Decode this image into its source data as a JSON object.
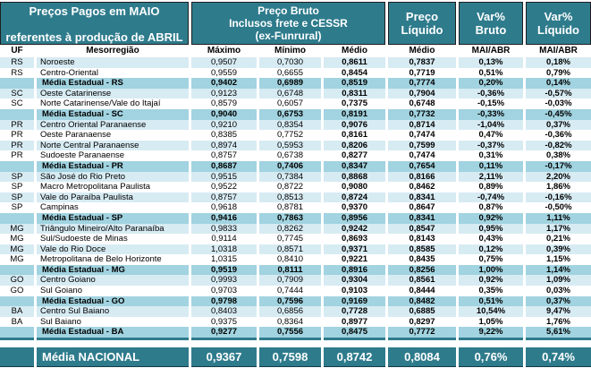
{
  "colors": {
    "teal": "#2E7B8C",
    "light": "#D7EBF3",
    "media": "#A1D3E0"
  },
  "header": {
    "title_line1": "Preços Pagos em MAIO",
    "title_line2": "referentes à produção de ABRIL",
    "bruto_line1": "Preço Bruto",
    "bruto_line2": "Inclusos frete e CESSR",
    "bruto_line3": "(ex-Funrural)",
    "liquido_line1": "Preço",
    "liquido_line2": "Líquido",
    "var_bruto_line1": "Var%",
    "var_bruto_line2": "Bruto",
    "var_liquido_line1": "Var%",
    "var_liquido_line2": "Líquido"
  },
  "chart_data": {
    "type": "table",
    "columns": [
      "UF",
      "Mesorregião",
      "Máximo",
      "Mínimo",
      "Médio",
      "Médio",
      "MAI/ABR",
      "MAI/ABR"
    ],
    "rows": [
      {
        "uf": "RS",
        "region": "Noroeste",
        "max": "0,9507",
        "min": "0,7030",
        "med": "0,8611",
        "liq": "0,7837",
        "var_bruto": "0,13%",
        "var_liq": "0,18%",
        "kind": "light"
      },
      {
        "uf": "RS",
        "region": "Centro-Oriental",
        "max": "0,9559",
        "min": "0,6655",
        "med": "0,8454",
        "liq": "0,7719",
        "var_bruto": "0,51%",
        "var_liq": "0,79%",
        "kind": "white"
      },
      {
        "uf": "",
        "region": "Média Estadual - RS",
        "max": "0,9402",
        "min": "0,6989",
        "med": "0,8519",
        "liq": "0,7774",
        "var_bruto": "0,20%",
        "var_liq": "0,14%",
        "kind": "media"
      },
      {
        "uf": "SC",
        "region": "Oeste Catarinense",
        "max": "0,9123",
        "min": "0,6748",
        "med": "0,8311",
        "liq": "0,7904",
        "var_bruto": "-0,36%",
        "var_liq": "-0,57%",
        "kind": "light"
      },
      {
        "uf": "SC",
        "region": "Norte Catarinense/Vale do Itajaí",
        "max": "0,8579",
        "min": "0,6057",
        "med": "0,7375",
        "liq": "0,6748",
        "var_bruto": "-0,15%",
        "var_liq": "-0,03%",
        "kind": "white"
      },
      {
        "uf": "",
        "region": "Média Estadual - SC",
        "max": "0,9040",
        "min": "0,6753",
        "med": "0,8191",
        "liq": "0,7732",
        "var_bruto": "-0,33%",
        "var_liq": "-0,45%",
        "kind": "media"
      },
      {
        "uf": "PR",
        "region": "Centro Oriental Paranaense",
        "max": "0,9210",
        "min": "0,8354",
        "med": "0,9076",
        "liq": "0,8714",
        "var_bruto": "-1,04%",
        "var_liq": "0,37%",
        "kind": "light"
      },
      {
        "uf": "PR",
        "region": "Oeste Paranaense",
        "max": "0,8385",
        "min": "0,7752",
        "med": "0,8161",
        "liq": "0,7474",
        "var_bruto": "0,47%",
        "var_liq": "-0,36%",
        "kind": "white"
      },
      {
        "uf": "PR",
        "region": "Norte Central Paranaense",
        "max": "0,8974",
        "min": "0,5953",
        "med": "0,8206",
        "liq": "0,7599",
        "var_bruto": "-0,37%",
        "var_liq": "-0,82%",
        "kind": "light"
      },
      {
        "uf": "PR",
        "region": "Sudoeste Paranaense",
        "max": "0,8757",
        "min": "0,6738",
        "med": "0,8277",
        "liq": "0,7474",
        "var_bruto": "0,31%",
        "var_liq": "0,38%",
        "kind": "white"
      },
      {
        "uf": "",
        "region": "Média Estadual - PR",
        "max": "0,8687",
        "min": "0,7406",
        "med": "0,8347",
        "liq": "0,7654",
        "var_bruto": "0,11%",
        "var_liq": "-0,17%",
        "kind": "media"
      },
      {
        "uf": "SP",
        "region": "São José do Rio Preto",
        "max": "0,9515",
        "min": "0,7384",
        "med": "0,8868",
        "liq": "0,8166",
        "var_bruto": "2,11%",
        "var_liq": "2,20%",
        "kind": "light"
      },
      {
        "uf": "SP",
        "region": "Macro Metropolitana Paulista",
        "max": "0,9522",
        "min": "0,8722",
        "med": "0,9080",
        "liq": "0,8462",
        "var_bruto": "0,89%",
        "var_liq": "1,86%",
        "kind": "white"
      },
      {
        "uf": "SP",
        "region": "Vale do Paraíba Paulista",
        "max": "0,8757",
        "min": "0,8513",
        "med": "0,8724",
        "liq": "0,8341",
        "var_bruto": "-0,74%",
        "var_liq": "-0,16%",
        "kind": "light"
      },
      {
        "uf": "SP",
        "region": "Campinas",
        "max": "0,9618",
        "min": "0,8781",
        "med": "0,9370",
        "liq": "0,8647",
        "var_bruto": "0,87%",
        "var_liq": "-0,50%",
        "kind": "white"
      },
      {
        "uf": "",
        "region": "Média Estadual - SP",
        "max": "0,9416",
        "min": "0,7863",
        "med": "0,8956",
        "liq": "0,8341",
        "var_bruto": "0,92%",
        "var_liq": "1,11%",
        "kind": "media"
      },
      {
        "uf": "MG",
        "region": "Triângulo Mineiro/Alto Paranaíba",
        "max": "0,9833",
        "min": "0,8262",
        "med": "0,9242",
        "liq": "0,8547",
        "var_bruto": "0,95%",
        "var_liq": "1,17%",
        "kind": "light"
      },
      {
        "uf": "MG",
        "region": "Sul/Sudoeste de Minas",
        "max": "0,9114",
        "min": "0,7745",
        "med": "0,8693",
        "liq": "0,8143",
        "var_bruto": "0,43%",
        "var_liq": "0,21%",
        "kind": "white"
      },
      {
        "uf": "MG",
        "region": "Vale do Rio Doce",
        "max": "1,0318",
        "min": "0,8571",
        "med": "0,9371",
        "liq": "0,8585",
        "var_bruto": "0,12%",
        "var_liq": "0,39%",
        "kind": "light"
      },
      {
        "uf": "MG",
        "region": "Metropolitana de Belo Horizonte",
        "max": "1,0315",
        "min": "0,8410",
        "med": "0,9221",
        "liq": "0,8435",
        "var_bruto": "0,75%",
        "var_liq": "1,15%",
        "kind": "white"
      },
      {
        "uf": "",
        "region": "Média Estadual - MG",
        "max": "0,9519",
        "min": "0,8111",
        "med": "0,8916",
        "liq": "0,8256",
        "var_bruto": "1,00%",
        "var_liq": "1,14%",
        "kind": "media"
      },
      {
        "uf": "GO",
        "region": "Centro Goiano",
        "max": "0,9993",
        "min": "0,7909",
        "med": "0,9304",
        "liq": "0,8561",
        "var_bruto": "0,92%",
        "var_liq": "1,09%",
        "kind": "light"
      },
      {
        "uf": "GO",
        "region": "Sul Goiano",
        "max": "0,9703",
        "min": "0,7444",
        "med": "0,9103",
        "liq": "0,8444",
        "var_bruto": "0,35%",
        "var_liq": "0,03%",
        "kind": "white"
      },
      {
        "uf": "",
        "region": "Média Estadual - GO",
        "max": "0,9798",
        "min": "0,7596",
        "med": "0,9169",
        "liq": "0,8482",
        "var_bruto": "0,51%",
        "var_liq": "0,37%",
        "kind": "media"
      },
      {
        "uf": "BA",
        "region": "Centro Sul Baiano",
        "max": "0,8403",
        "min": "0,6856",
        "med": "0,7728",
        "liq": "0,6885",
        "var_bruto": "10,54%",
        "var_liq": "9,47%",
        "kind": "light"
      },
      {
        "uf": "BA",
        "region": "Sul Baiano",
        "max": "0,9375",
        "min": "0,8364",
        "med": "0,8977",
        "liq": "0,8297",
        "var_bruto": "1,05%",
        "var_liq": "1,76%",
        "kind": "white"
      },
      {
        "uf": "",
        "region": "Média Estadual - BA",
        "max": "0,9277",
        "min": "0,7556",
        "med": "0,8475",
        "liq": "0,7772",
        "var_bruto": "9,22%",
        "var_liq": "5,61%",
        "kind": "media"
      }
    ],
    "national": {
      "label": "Média NACIONAL",
      "max": "0,9367",
      "min": "0,7598",
      "med": "0,8742",
      "liq": "0,8084",
      "var_bruto": "0,76%",
      "var_liq": "0,74%"
    }
  }
}
